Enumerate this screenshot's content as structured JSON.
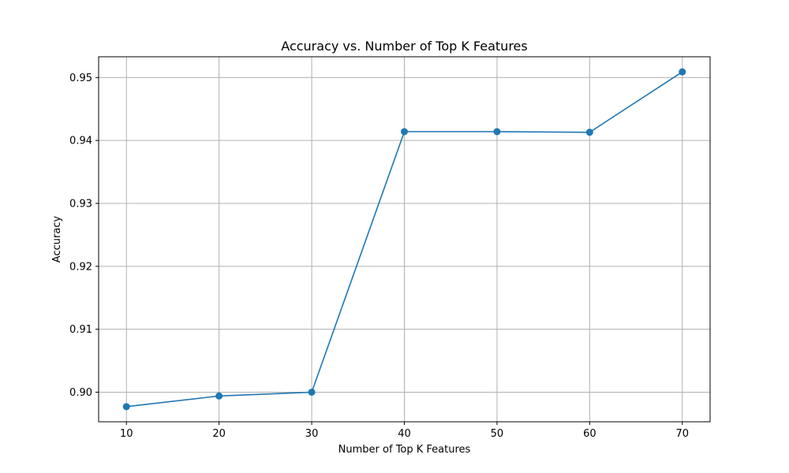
{
  "chart_data": {
    "type": "line",
    "title": "Accuracy vs. Number of Top K Features",
    "xlabel": "Number of Top K Features",
    "ylabel": "Accuracy",
    "x": [
      10,
      20,
      30,
      40,
      50,
      60,
      70
    ],
    "series": [
      {
        "values": [
          0.8977,
          0.8994,
          0.9,
          0.9414,
          0.9414,
          0.9413,
          0.9509
        ],
        "color": "#1f77b4",
        "marker": "circle"
      }
    ],
    "xticks": [
      10,
      20,
      30,
      40,
      50,
      60,
      70
    ],
    "yticks": [
      0.9,
      0.91,
      0.92,
      0.93,
      0.94,
      0.95
    ],
    "ytick_labels": [
      "0.90",
      "0.91",
      "0.92",
      "0.93",
      "0.94",
      "0.95"
    ],
    "xlim": [
      7,
      73
    ],
    "ylim": [
      0.8953,
      0.9533
    ],
    "grid": true
  }
}
